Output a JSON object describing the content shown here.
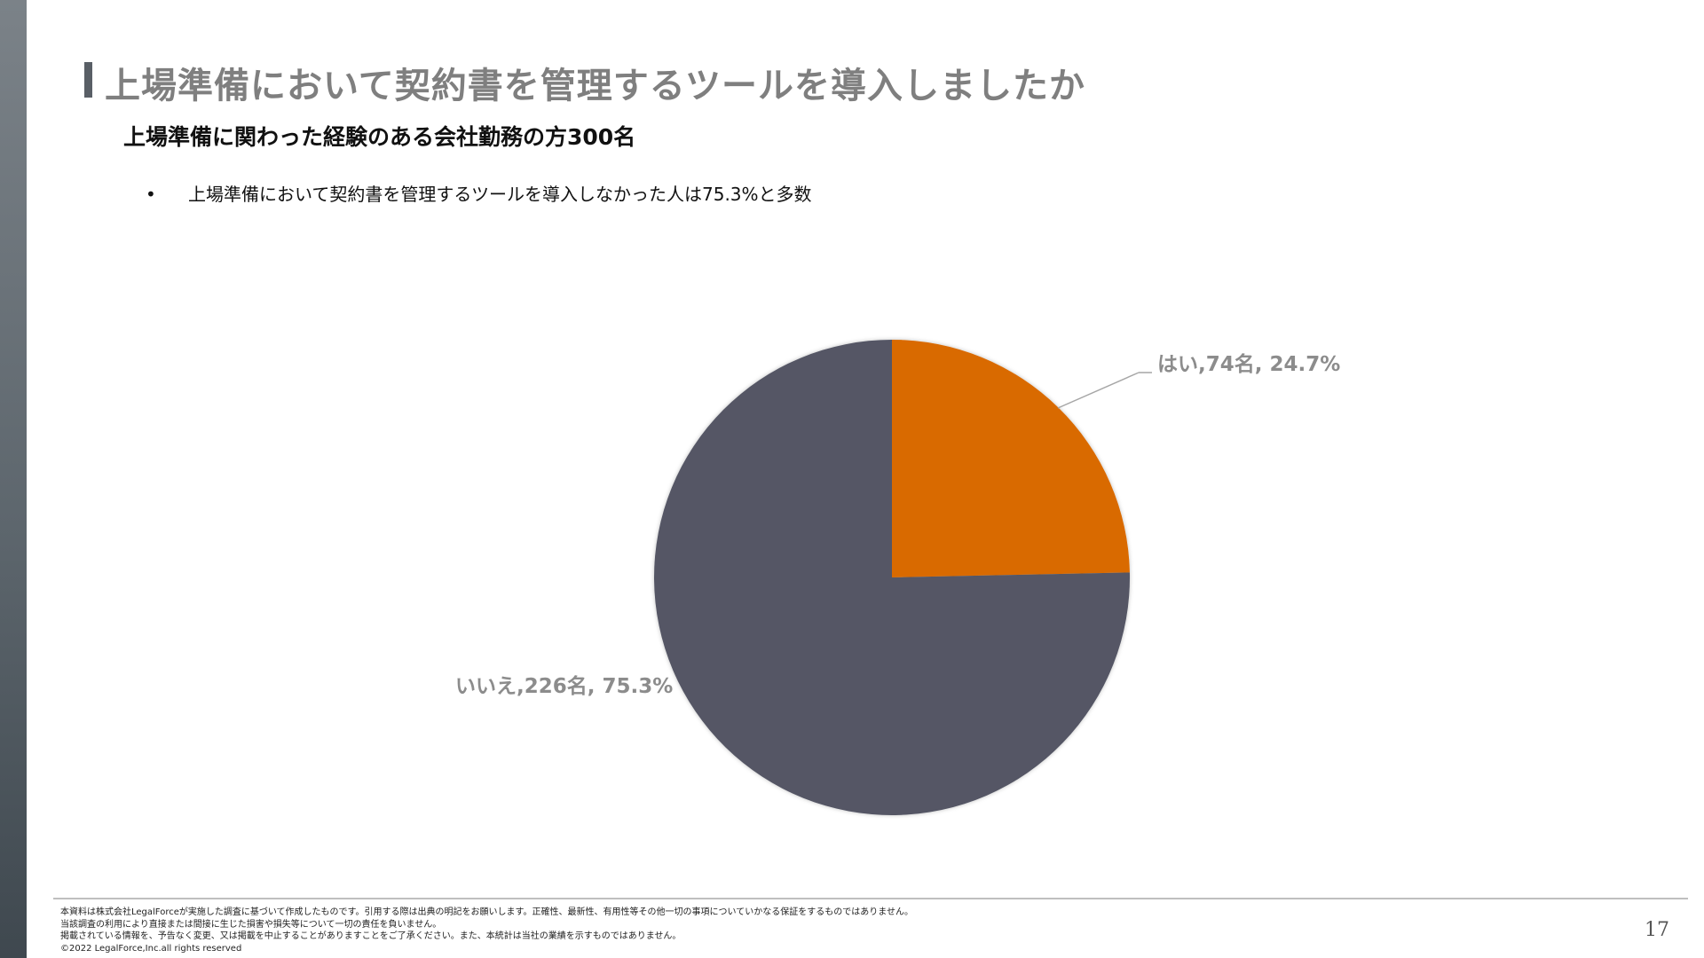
{
  "slide": {
    "title": "上場準備において契約書を管理するツールを導入しましたか",
    "subtitle": "上場準備に関わった経験のある会社勤務の方300名",
    "bullet_symbol": "•",
    "bullet_text": "上場準備において契約書を管理するツールを導入しなかった人は75.3%と多数"
  },
  "chart_data": {
    "type": "pie",
    "slices": [
      {
        "label": "はい,74名, 24.7%",
        "category": "はい",
        "count": 74,
        "percent": 24.7,
        "color": "#d96b00"
      },
      {
        "label": "いいえ,226名, 75.3%",
        "category": "いいえ",
        "count": 226,
        "percent": 75.3,
        "color": "#545765"
      }
    ],
    "start_angle_deg": 0,
    "direction": "clockwise"
  },
  "footer": {
    "notes": [
      "本資料は株式会社LegalForceが実施した調査に基づいて作成したものです。引用する際は出典の明記をお願いします。正確性、最新性、有用性等その他一切の事項についていかなる保証をするものではありません。",
      "当該調査の利用により直接または間接に生じた損害や損失等について一切の責任を負いません。",
      "掲載されている情報を、予告なく変更、又は掲載を中止することがありますことをご了承ください。また、本統計は当社の業績を示すものではありません。",
      "©2022 LegalForce,Inc.all rights reserved"
    ],
    "page_number": "17"
  }
}
